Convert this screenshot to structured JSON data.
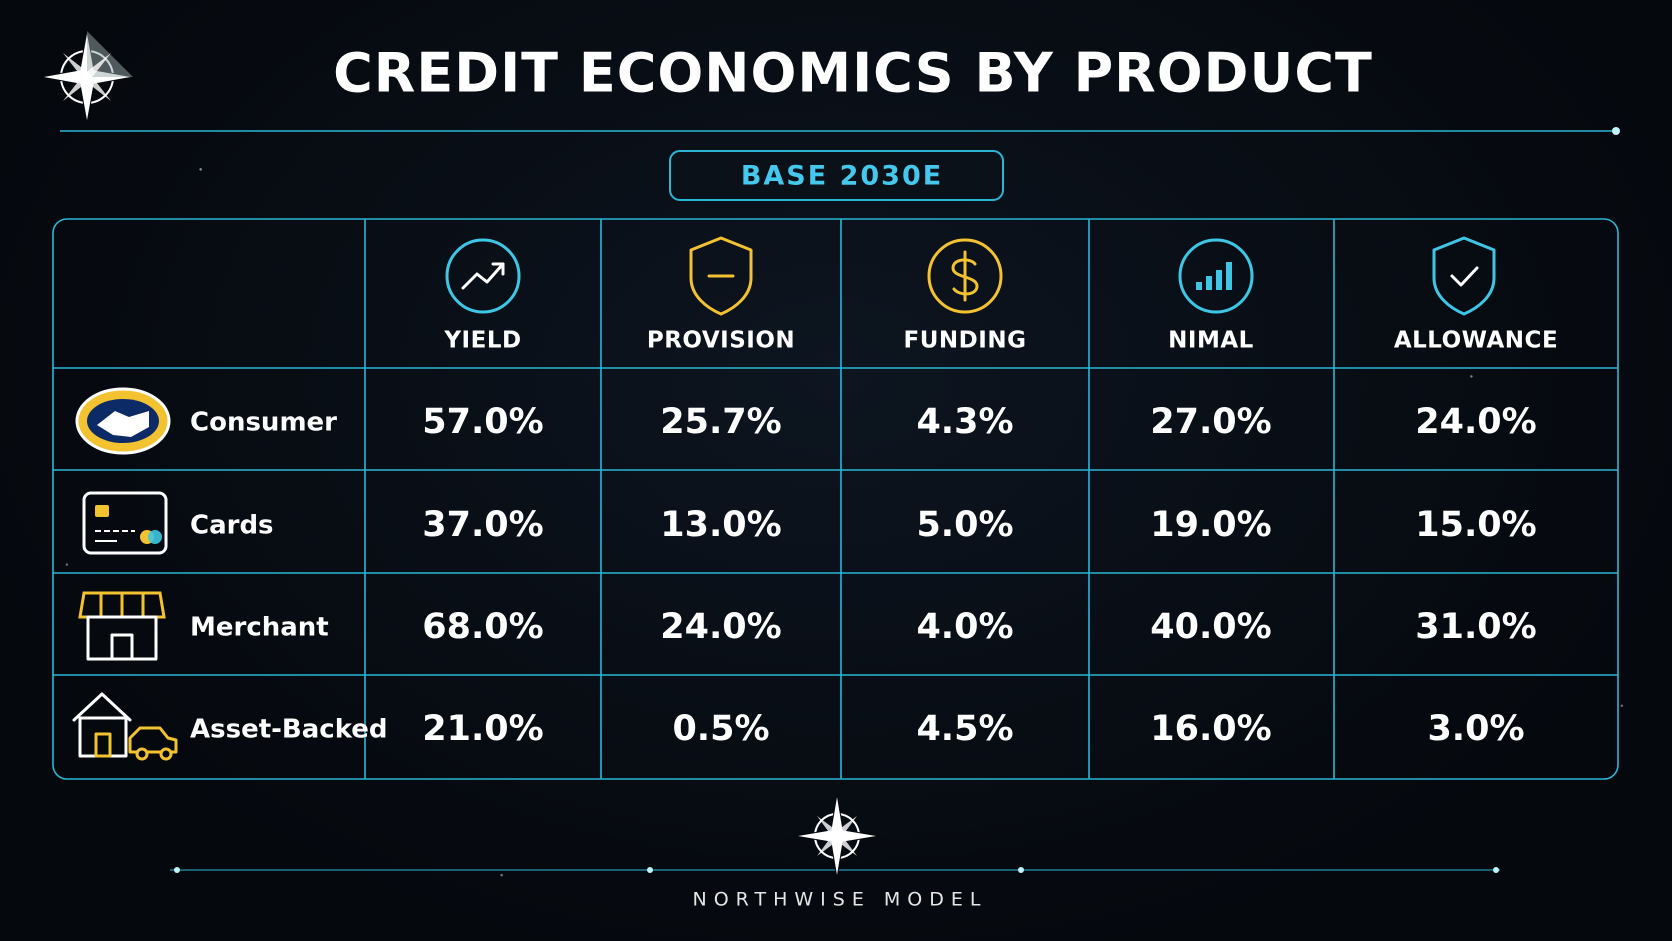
{
  "header": {
    "title": "CREDIT ECONOMICS BY PRODUCT",
    "badge": "BASE 2030E"
  },
  "table": {
    "columns": [
      "YIELD",
      "PROVISION",
      "FUNDING",
      "NIMAL",
      "ALLOWANCE"
    ],
    "rows": [
      {
        "label": "Consumer",
        "cells": [
          "57.0%",
          "25.7%",
          "4.3%",
          "27.0%",
          "24.0%"
        ]
      },
      {
        "label": "Cards",
        "cells": [
          "37.0%",
          "13.0%",
          "5.0%",
          "19.0%",
          "15.0%"
        ]
      },
      {
        "label": "Merchant",
        "cells": [
          "68.0%",
          "24.0%",
          "4.0%",
          "40.0%",
          "31.0%"
        ]
      },
      {
        "label": "Asset-Backed",
        "cells": [
          "21.0%",
          "0.5%",
          "4.5%",
          "16.0%",
          "3.0%"
        ]
      }
    ]
  },
  "footer": {
    "brand": "NORTHWISE MODEL"
  }
}
